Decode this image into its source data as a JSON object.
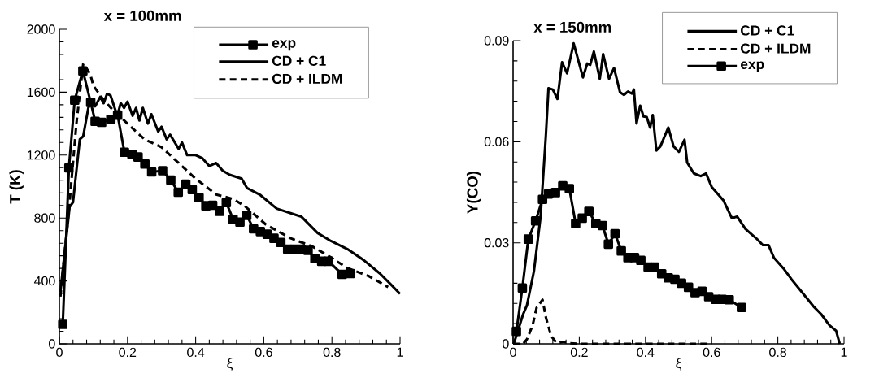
{
  "chart_data": [
    {
      "type": "line",
      "title": "x = 100mm",
      "xlabel": "ξ",
      "ylabel": "T (K)",
      "xlim": [
        0,
        1
      ],
      "ylim": [
        0,
        2000
      ],
      "xticks": [
        0,
        0.2,
        0.4,
        0.6,
        0.8,
        1
      ],
      "yticks": [
        0,
        400,
        800,
        1200,
        1600,
        2000
      ],
      "legend": "top right",
      "series": [
        {
          "name": "exp",
          "color": "#000000",
          "marker": "square",
          "line_style": "solid",
          "x": [
            0.01,
            0.028,
            0.045,
            0.069,
            0.092,
            0.105,
            0.124,
            0.151,
            0.171,
            0.191,
            0.213,
            0.231,
            0.251,
            0.271,
            0.303,
            0.327,
            0.349,
            0.371,
            0.39,
            0.41,
            0.43,
            0.45,
            0.47,
            0.49,
            0.51,
            0.53,
            0.55,
            0.57,
            0.59,
            0.61,
            0.63,
            0.65,
            0.67,
            0.69,
            0.71,
            0.73,
            0.75,
            0.77,
            0.79,
            0.83,
            0.854
          ],
          "values": [
            124,
            1119,
            1549,
            1735,
            1535,
            1415,
            1408,
            1428,
            1454,
            1218,
            1205,
            1188,
            1144,
            1093,
            1101,
            1041,
            964,
            1015,
            981,
            929,
            878,
            881,
            843,
            898,
            792,
            774,
            817,
            731,
            714,
            697,
            671,
            645,
            602,
            602,
            602,
            594,
            542,
            525,
            525,
            442,
            447
          ]
        },
        {
          "name": "CD + C1",
          "color": "#000000",
          "marker": "none",
          "line_style": "solid",
          "x": [
            0.003,
            0.03,
            0.04,
            0.06,
            0.07,
            0.085,
            0.095,
            0.105,
            0.12,
            0.13,
            0.14,
            0.15,
            0.17,
            0.18,
            0.19,
            0.2,
            0.215,
            0.225,
            0.235,
            0.245,
            0.26,
            0.27,
            0.29,
            0.3,
            0.315,
            0.325,
            0.35,
            0.36,
            0.375,
            0.4,
            0.42,
            0.44,
            0.46,
            0.48,
            0.5,
            0.535,
            0.551,
            0.59,
            0.638,
            0.686,
            0.71,
            0.758,
            0.797,
            0.845,
            0.893,
            0.941,
            0.973,
            1.0
          ],
          "values": [
            330,
            870,
            900,
            1300,
            1320,
            1500,
            1540,
            1510,
            1570,
            1530,
            1590,
            1580,
            1450,
            1530,
            1500,
            1540,
            1450,
            1500,
            1420,
            1500,
            1400,
            1460,
            1350,
            1380,
            1300,
            1330,
            1240,
            1280,
            1200,
            1200,
            1180,
            1130,
            1150,
            1100,
            1075,
            1050,
            990,
            946,
            860,
            826,
            809,
            705,
            654,
            603,
            533,
            447,
            378,
            318
          ]
        },
        {
          "name": "CD + ILDM",
          "color": "#000000",
          "marker": "none",
          "line_style": "dashed",
          "x": [
            0.003,
            0.03,
            0.05,
            0.07,
            0.09,
            0.1,
            0.13,
            0.16,
            0.2,
            0.25,
            0.3,
            0.35,
            0.4,
            0.46,
            0.51,
            0.543,
            0.607,
            0.679,
            0.742,
            0.797,
            0.845,
            0.909,
            0.965
          ],
          "values": [
            300,
            900,
            1400,
            1780,
            1720,
            1640,
            1550,
            1480,
            1400,
            1300,
            1250,
            1150,
            1050,
            950,
            921,
            878,
            757,
            671,
            620,
            550,
            482,
            430,
            361
          ]
        }
      ]
    },
    {
      "type": "line",
      "title": "x = 150mm",
      "xlabel": "ξ",
      "ylabel": "Y(CO)",
      "xlim": [
        0,
        1
      ],
      "ylim": [
        0,
        0.09
      ],
      "xticks": [
        0,
        0.2,
        0.4,
        0.6,
        0.8,
        1
      ],
      "yticks": [
        0,
        0.03,
        0.06,
        0.09
      ],
      "legend": "top right",
      "series": [
        {
          "name": "CD + C1",
          "color": "#000000",
          "marker": "none",
          "line_style": "solid",
          "x": [
            0.002,
            0.03,
            0.042,
            0.063,
            0.083,
            0.099,
            0.107,
            0.12,
            0.134,
            0.148,
            0.163,
            0.183,
            0.211,
            0.224,
            0.233,
            0.244,
            0.262,
            0.272,
            0.29,
            0.305,
            0.323,
            0.335,
            0.347,
            0.359,
            0.365,
            0.373,
            0.384,
            0.394,
            0.404,
            0.414,
            0.422,
            0.433,
            0.445,
            0.469,
            0.485,
            0.501,
            0.518,
            0.526,
            0.546,
            0.567,
            0.583,
            0.6,
            0.636,
            0.661,
            0.677,
            0.702,
            0.735,
            0.755,
            0.772,
            0.788,
            0.817,
            0.841,
            0.874,
            0.907,
            0.931,
            0.956,
            0.976,
            0.987
          ],
          "values": [
            0.0,
            0.0087,
            0.0115,
            0.0216,
            0.0377,
            0.0618,
            0.0759,
            0.0755,
            0.0727,
            0.0836,
            0.0803,
            0.0892,
            0.0791,
            0.0832,
            0.0828,
            0.0868,
            0.0787,
            0.086,
            0.0787,
            0.0819,
            0.0747,
            0.0739,
            0.0749,
            0.0743,
            0.0755,
            0.0654,
            0.0707,
            0.0675,
            0.0673,
            0.0642,
            0.0679,
            0.0574,
            0.0586,
            0.0642,
            0.0586,
            0.057,
            0.0606,
            0.0538,
            0.0506,
            0.0498,
            0.0506,
            0.0466,
            0.0425,
            0.0373,
            0.0378,
            0.0341,
            0.0313,
            0.0293,
            0.0293,
            0.0256,
            0.0224,
            0.0192,
            0.0152,
            0.0112,
            0.0088,
            0.0055,
            0.0039,
            0.0
          ]
        },
        {
          "name": "CD + ILDM",
          "color": "#000000",
          "marker": "none",
          "line_style": "dashed",
          "x": [
            0.0,
            0.03,
            0.042,
            0.059,
            0.071,
            0.089,
            0.099,
            0.115,
            0.132,
            0.152,
            0.172,
            0.2,
            0.4,
            0.6
          ],
          "values": [
            0.0,
            0.0,
            0.0014,
            0.0055,
            0.0107,
            0.0131,
            0.0079,
            0.0023,
            0.0002,
            0.0006,
            0.0002,
            0.0,
            0.0,
            0.0
          ]
        },
        {
          "name": "exp",
          "color": "#000000",
          "marker": "square",
          "line_style": "solid",
          "x": [
            0.01,
            0.028,
            0.046,
            0.068,
            0.089,
            0.107,
            0.128,
            0.15,
            0.17,
            0.189,
            0.209,
            0.229,
            0.25,
            0.27,
            0.288,
            0.308,
            0.327,
            0.347,
            0.367,
            0.386,
            0.408,
            0.428,
            0.449,
            0.469,
            0.489,
            0.509,
            0.53,
            0.55,
            0.571,
            0.591,
            0.612,
            0.632,
            0.653,
            0.69
          ],
          "values": [
            0.0037,
            0.0166,
            0.0311,
            0.0365,
            0.0429,
            0.0445,
            0.0449,
            0.0469,
            0.0461,
            0.0357,
            0.0373,
            0.0393,
            0.0357,
            0.0351,
            0.0296,
            0.0327,
            0.0276,
            0.0256,
            0.0256,
            0.0248,
            0.0228,
            0.0228,
            0.0208,
            0.0196,
            0.0192,
            0.018,
            0.0168,
            0.0152,
            0.0156,
            0.014,
            0.0132,
            0.0132,
            0.0131,
            0.0108
          ]
        }
      ]
    }
  ]
}
